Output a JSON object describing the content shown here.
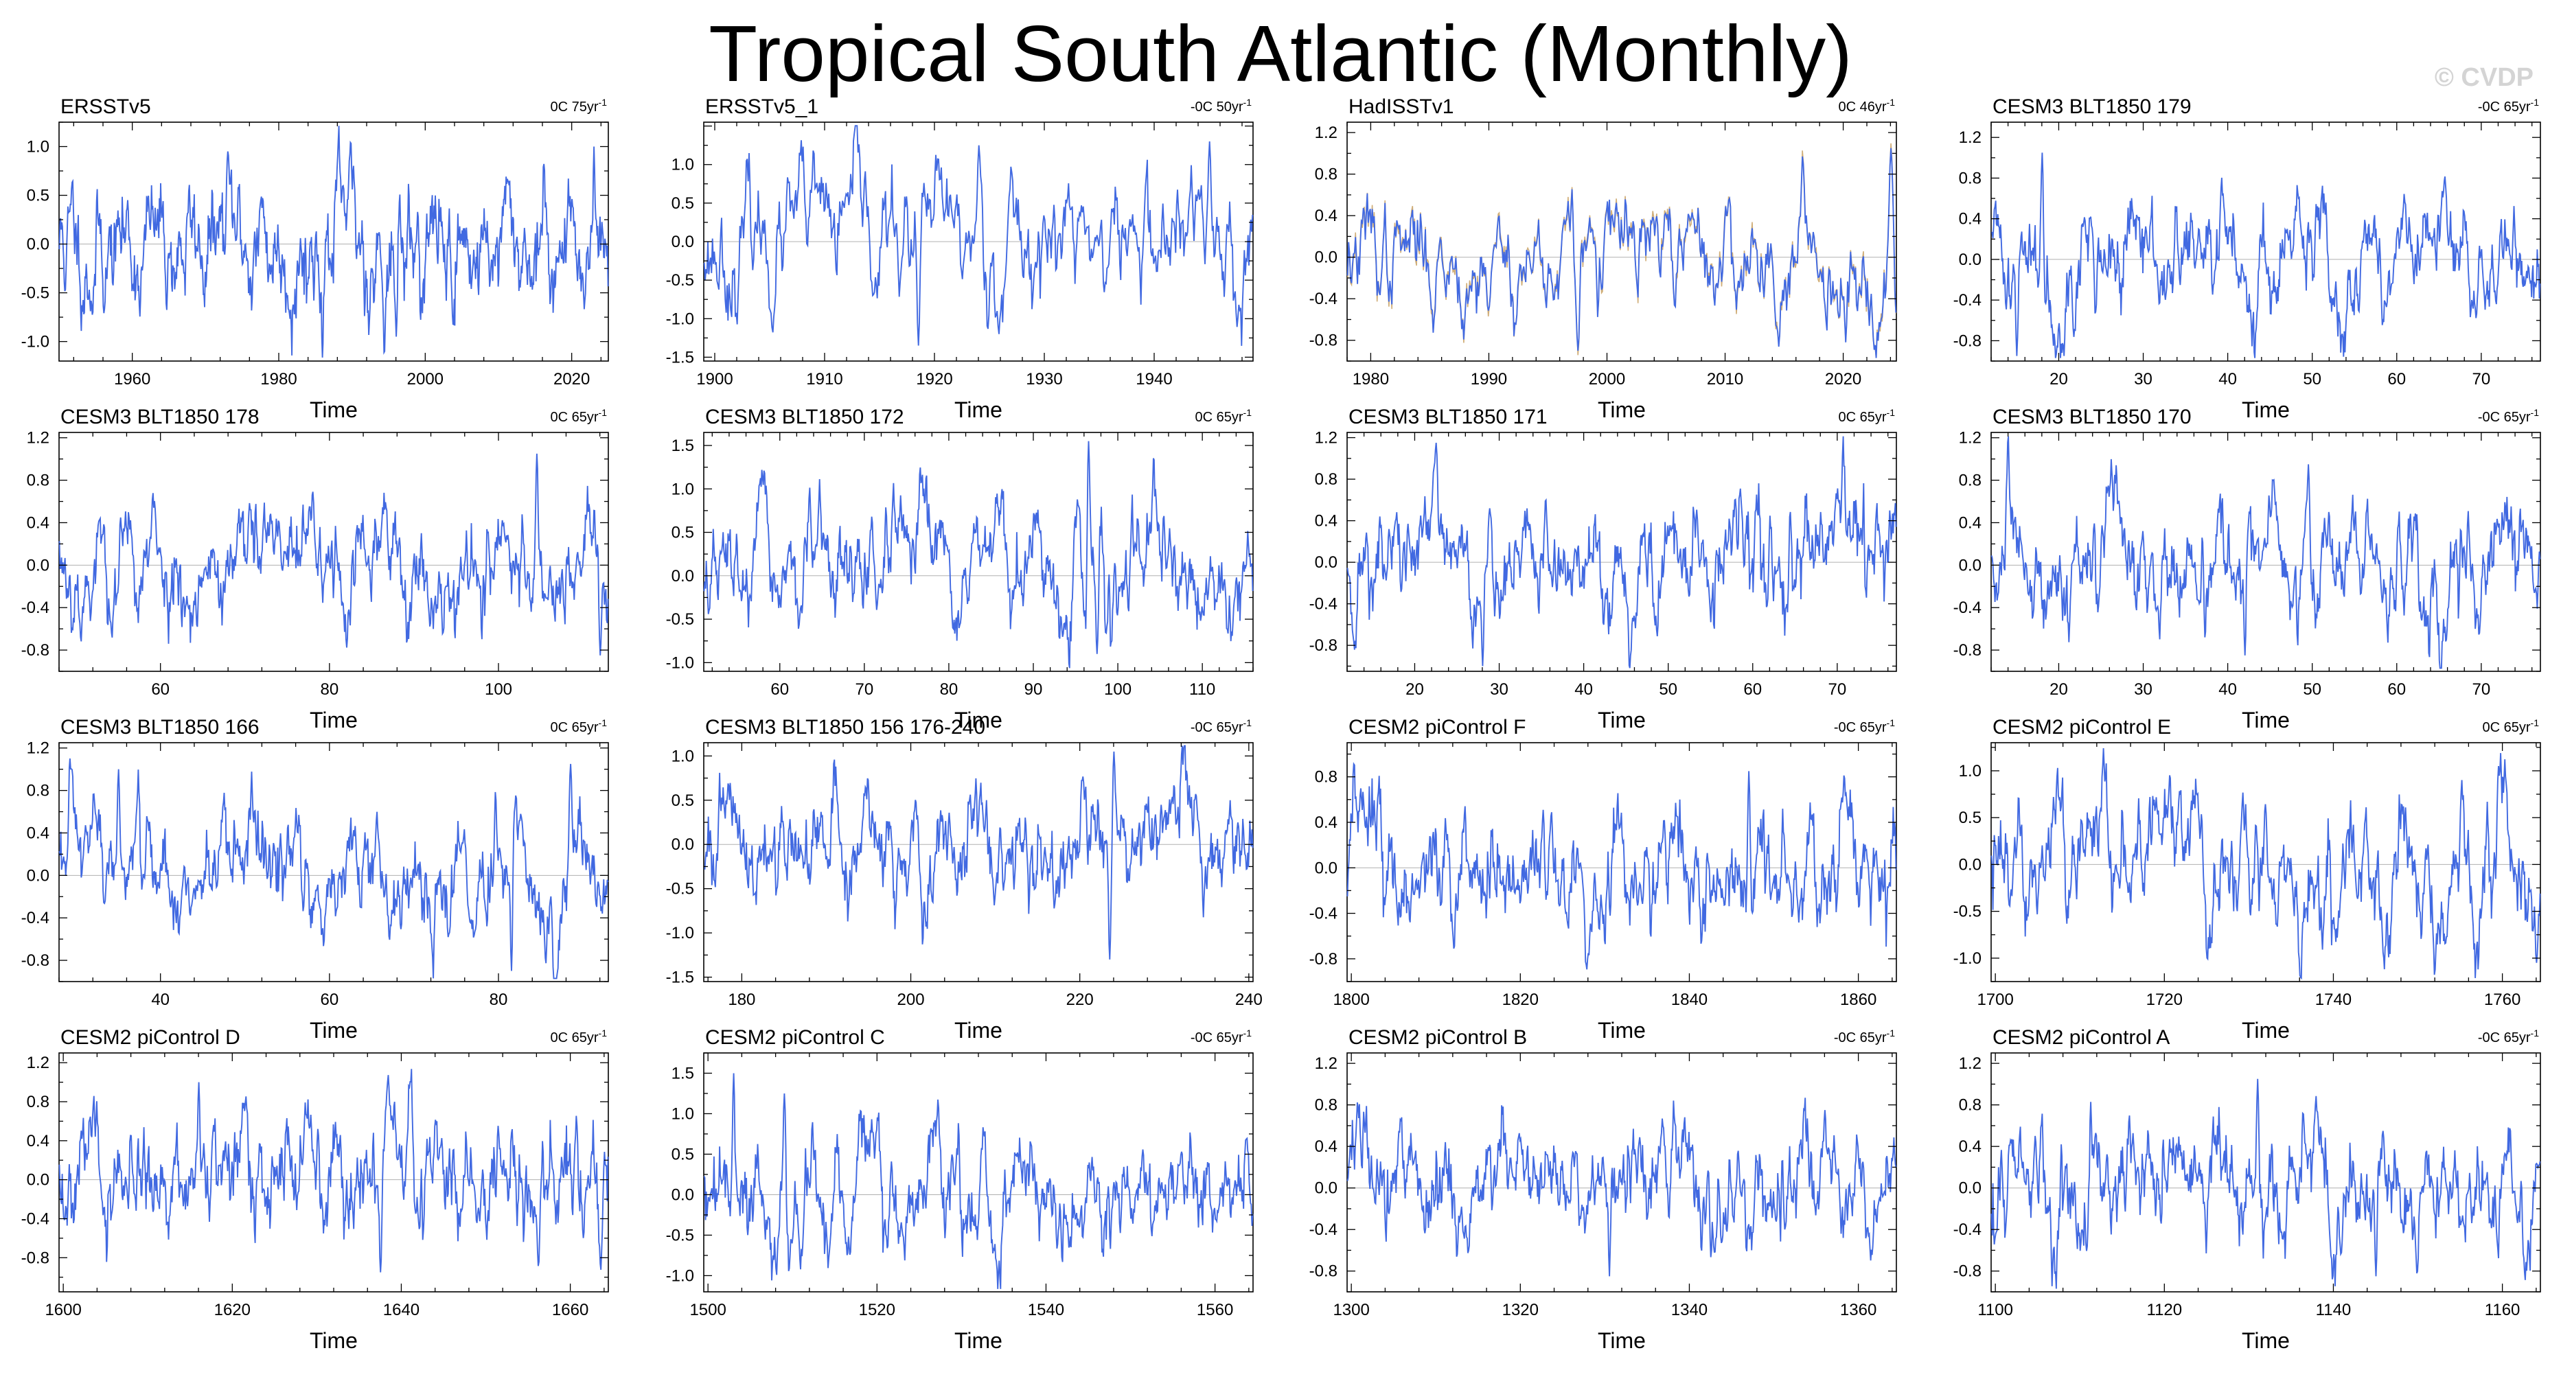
{
  "page": {
    "title": "Tropical South Atlantic (Monthly)",
    "watermark": "© CVDP",
    "line_color": "#4169e1",
    "obs_overlay_color": "#c8a060"
  },
  "chart_data": [
    {
      "type": "line",
      "title": "ERSSTv5",
      "trend_label": "0C 75yr",
      "trend_sup": "-1",
      "xlabel": "Time",
      "xlim": [
        1950,
        2025
      ],
      "ylim": [
        -1.2,
        1.25
      ],
      "xticks": [
        1960,
        1980,
        2000,
        2020
      ],
      "yticks": [
        -1.0,
        -0.5,
        0.0,
        0.5,
        1.0
      ],
      "ytick_labels": [
        "-1.0",
        "-0.5",
        "0.0",
        "0.5",
        "1.0"
      ],
      "spikes": [
        [
          1973,
          0.95
        ],
        [
          1996,
          -0.95
        ],
        [
          2023,
          1.0
        ]
      ],
      "seed": 11
    },
    {
      "type": "line",
      "title": "ERSSTv5_1",
      "trend_label": "-0C 50yr",
      "trend_sup": "-1",
      "xlabel": "Time",
      "xlim": [
        1899,
        1949
      ],
      "ylim": [
        -1.55,
        1.55
      ],
      "xticks": [
        1900,
        1910,
        1920,
        1930,
        1940
      ],
      "yticks": [
        -1.5,
        -1.0,
        -0.5,
        0.0,
        0.5,
        1.0
      ],
      "ytick_labels": [
        "-1.5",
        "-1.0",
        "-0.5",
        "0.0",
        "0.5",
        "1.0"
      ],
      "spikes": [
        [
          1918.5,
          -1.35
        ],
        [
          1924,
          1.25
        ],
        [
          1945,
          1.3
        ]
      ],
      "seed": 23
    },
    {
      "type": "line",
      "title": "HadISSTv1",
      "trend_label": "0C 46yr",
      "trend_sup": "-1",
      "xlabel": "Time",
      "xlim": [
        1978,
        2024.5
      ],
      "ylim": [
        -1.0,
        1.3
      ],
      "xticks": [
        1980,
        1990,
        2000,
        2010,
        2020
      ],
      "yticks": [
        -0.8,
        -0.4,
        0.0,
        0.4,
        0.8,
        1.2
      ],
      "ytick_labels": [
        "-0.8",
        "-0.4",
        "0.0",
        "0.4",
        "0.8",
        "1.2"
      ],
      "spikes": [
        [
          1997.5,
          -0.9
        ],
        [
          2024,
          1.05
        ]
      ],
      "overlay": true,
      "seed": 37
    },
    {
      "type": "line",
      "title": "CESM3 BLT1850 179",
      "trend_label": "-0C 65yr",
      "trend_sup": "-1",
      "xlabel": "Time",
      "xlim": [
        12,
        77
      ],
      "ylim": [
        -1.0,
        1.35
      ],
      "xticks": [
        20,
        30,
        40,
        50,
        60,
        70
      ],
      "yticks": [
        -0.8,
        -0.4,
        0.0,
        0.4,
        0.8,
        1.2
      ],
      "ytick_labels": [
        "-0.8",
        "-0.4",
        "0.0",
        "0.4",
        "0.8",
        "1.2"
      ],
      "spikes": [
        [
          18,
          1.05
        ],
        [
          15,
          -0.95
        ]
      ],
      "seed": 41
    },
    {
      "type": "line",
      "title": "CESM3 BLT1850 178",
      "trend_label": "0C 65yr",
      "trend_sup": "-1",
      "xlabel": "Time",
      "xlim": [
        48,
        113
      ],
      "ylim": [
        -1.0,
        1.25
      ],
      "xticks": [
        60,
        80,
        100
      ],
      "yticks": [
        -0.8,
        -0.4,
        0.0,
        0.4,
        0.8,
        1.2
      ],
      "ytick_labels": [
        "-0.8",
        "-0.4",
        "0.0",
        "0.4",
        "0.8",
        "1.2"
      ],
      "spikes": [
        [
          104.5,
          1.05
        ],
        [
          112,
          -0.85
        ]
      ],
      "seed": 53
    },
    {
      "type": "line",
      "title": "CESM3 BLT1850 172",
      "trend_label": "0C 65yr",
      "trend_sup": "-1",
      "xlabel": "Time",
      "xlim": [
        51,
        116
      ],
      "ylim": [
        -1.1,
        1.65
      ],
      "xticks": [
        60,
        70,
        80,
        90,
        100,
        110
      ],
      "yticks": [
        -1.0,
        -0.5,
        0.0,
        0.5,
        1.0,
        1.5
      ],
      "ytick_labels": [
        "-1.0",
        "-0.5",
        "0.0",
        "0.5",
        "1.0",
        "1.5"
      ],
      "spikes": [
        [
          96.5,
          1.55
        ],
        [
          97.5,
          -0.9
        ]
      ],
      "seed": 67
    },
    {
      "type": "line",
      "title": "CESM3 BLT1850 171",
      "trend_label": "0C 65yr",
      "trend_sup": "-1",
      "xlabel": "Time",
      "xlim": [
        12,
        77
      ],
      "ylim": [
        -1.05,
        1.25
      ],
      "xticks": [
        20,
        30,
        40,
        50,
        60,
        70
      ],
      "yticks": [
        -0.8,
        -0.4,
        0.0,
        0.4,
        0.8,
        1.2
      ],
      "ytick_labels": [
        "-0.8",
        "-0.4",
        "0.0",
        "0.4",
        "0.8",
        "1.2"
      ],
      "spikes": [
        [
          22.5,
          1.15
        ],
        [
          28,
          -1.0
        ]
      ],
      "seed": 71
    },
    {
      "type": "line",
      "title": "CESM3 BLT1850 170",
      "trend_label": "-0C 65yr",
      "trend_sup": "-1",
      "xlabel": "Time",
      "xlim": [
        12,
        77
      ],
      "ylim": [
        -1.0,
        1.25
      ],
      "xticks": [
        20,
        30,
        40,
        50,
        60,
        70
      ],
      "yticks": [
        -0.8,
        -0.4,
        0.0,
        0.4,
        0.8,
        1.2
      ],
      "ytick_labels": [
        "-0.8",
        "-0.4",
        "0.0",
        "0.4",
        "0.8",
        "1.2"
      ],
      "spikes": [
        [
          49.5,
          0.95
        ],
        [
          42,
          -0.85
        ]
      ],
      "seed": 83
    },
    {
      "type": "line",
      "title": "CESM3 BLT1850 166",
      "trend_label": "0C 65yr",
      "trend_sup": "-1",
      "xlabel": "Time",
      "xlim": [
        28,
        93
      ],
      "ylim": [
        -1.0,
        1.25
      ],
      "xticks": [
        40,
        60,
        80
      ],
      "yticks": [
        -0.8,
        -0.4,
        0.0,
        0.4,
        0.8,
        1.2
      ],
      "ytick_labels": [
        "-0.8",
        "-0.4",
        "0.0",
        "0.4",
        "0.8",
        "1.2"
      ],
      "spikes": [
        [
          35,
          1.0
        ],
        [
          88.5,
          1.05
        ],
        [
          81.5,
          -0.9
        ]
      ],
      "seed": 97
    },
    {
      "type": "line",
      "title": "CESM3 BLT1850 156 176-240",
      "trend_label": "-0C 65yr",
      "trend_sup": "-1",
      "xlabel": "Time",
      "xlim": [
        175.5,
        240.5
      ],
      "ylim": [
        -1.55,
        1.15
      ],
      "xticks": [
        180,
        200,
        220,
        240
      ],
      "yticks": [
        -1.5,
        -1.0,
        -0.5,
        0.0,
        0.5,
        1.0
      ],
      "ytick_labels": [
        "-1.5",
        "-1.0",
        "-0.5",
        "0.0",
        "0.5",
        "1.0"
      ],
      "spikes": [
        [
          223.5,
          -1.3
        ],
        [
          224,
          1.05
        ]
      ],
      "seed": 101
    },
    {
      "type": "line",
      "title": "CESM2 piControl F",
      "trend_label": "-0C 65yr",
      "trend_sup": "-1",
      "xlabel": "Time",
      "xlim": [
        1799.5,
        1864.5
      ],
      "ylim": [
        -1.0,
        1.1
      ],
      "xticks": [
        1800,
        1820,
        1840,
        1860
      ],
      "yticks": [
        -0.8,
        -0.4,
        0.0,
        0.4,
        0.8
      ],
      "ytick_labels": [
        "-0.8",
        "-0.4",
        "0.0",
        "0.4",
        "0.8"
      ],
      "spikes": [
        [
          1828,
          -0.75
        ],
        [
          1847,
          0.85
        ]
      ],
      "seed": 113
    },
    {
      "type": "line",
      "title": "CESM2 piControl E",
      "trend_label": "0C 65yr",
      "trend_sup": "-1",
      "xlabel": "Time",
      "xlim": [
        1699.5,
        1764.5
      ],
      "ylim": [
        -1.25,
        1.3
      ],
      "xticks": [
        1700,
        1720,
        1740,
        1760
      ],
      "yticks": [
        -1.0,
        -0.5,
        0.0,
        0.5,
        1.0
      ],
      "ytick_labels": [
        "-1.0",
        "-0.5",
        "0.0",
        "0.5",
        "1.0"
      ],
      "spikes": [
        [
          1759.5,
          1.05
        ],
        [
          1764,
          -1.05
        ]
      ],
      "seed": 127
    },
    {
      "type": "line",
      "title": "CESM2 piControl D",
      "trend_label": "0C 65yr",
      "trend_sup": "-1",
      "xlabel": "Time",
      "xlim": [
        1599.5,
        1664.5
      ],
      "ylim": [
        -1.15,
        1.3
      ],
      "xticks": [
        1600,
        1620,
        1640,
        1660
      ],
      "yticks": [
        -0.8,
        -0.4,
        0.0,
        0.4,
        0.8,
        1.2
      ],
      "ytick_labels": [
        "-0.8",
        "-0.4",
        "0.0",
        "0.4",
        "0.8",
        "1.2"
      ],
      "spikes": [
        [
          1616,
          1.0
        ],
        [
          1637.5,
          -0.95
        ]
      ],
      "seed": 131
    },
    {
      "type": "line",
      "title": "CESM2 piControl C",
      "trend_label": "-0C 65yr",
      "trend_sup": "-1",
      "xlabel": "Time",
      "xlim": [
        1499.5,
        1564.5
      ],
      "ylim": [
        -1.2,
        1.75
      ],
      "xticks": [
        1500,
        1520,
        1540,
        1560
      ],
      "yticks": [
        -1.0,
        -0.5,
        0.0,
        0.5,
        1.0,
        1.5
      ],
      "ytick_labels": [
        "-1.0",
        "-0.5",
        "0.0",
        "0.5",
        "1.0",
        "1.5"
      ],
      "spikes": [
        [
          1503,
          1.5
        ],
        [
          1509,
          1.25
        ]
      ],
      "seed": 139
    },
    {
      "type": "line",
      "title": "CESM2 piControl B",
      "trend_label": "-0C 65yr",
      "trend_sup": "-1",
      "xlabel": "Time",
      "xlim": [
        1299.5,
        1364.5
      ],
      "ylim": [
        -1.0,
        1.3
      ],
      "xticks": [
        1300,
        1320,
        1340,
        1360
      ],
      "yticks": [
        -0.8,
        -0.4,
        0.0,
        0.4,
        0.8,
        1.2
      ],
      "ytick_labels": [
        "-0.8",
        "-0.4",
        "0.0",
        "0.4",
        "0.8",
        "1.2"
      ],
      "spikes": [
        [
          1330.5,
          -0.85
        ],
        [
          1356,
          0.75
        ]
      ],
      "seed": 149
    },
    {
      "type": "line",
      "title": "CESM2 piControl A",
      "trend_label": "-0C 65yr",
      "trend_sup": "-1",
      "xlabel": "Time",
      "xlim": [
        1099.5,
        1164.5
      ],
      "ylim": [
        -1.0,
        1.3
      ],
      "xticks": [
        1100,
        1120,
        1140,
        1160
      ],
      "yticks": [
        -0.8,
        -0.4,
        0.0,
        0.4,
        0.8,
        1.2
      ],
      "ytick_labels": [
        "-0.8",
        "-0.4",
        "0.0",
        "0.4",
        "0.8",
        "1.2"
      ],
      "spikes": [
        [
          1131,
          1.05
        ],
        [
          1145,
          -0.85
        ]
      ],
      "seed": 157
    }
  ]
}
